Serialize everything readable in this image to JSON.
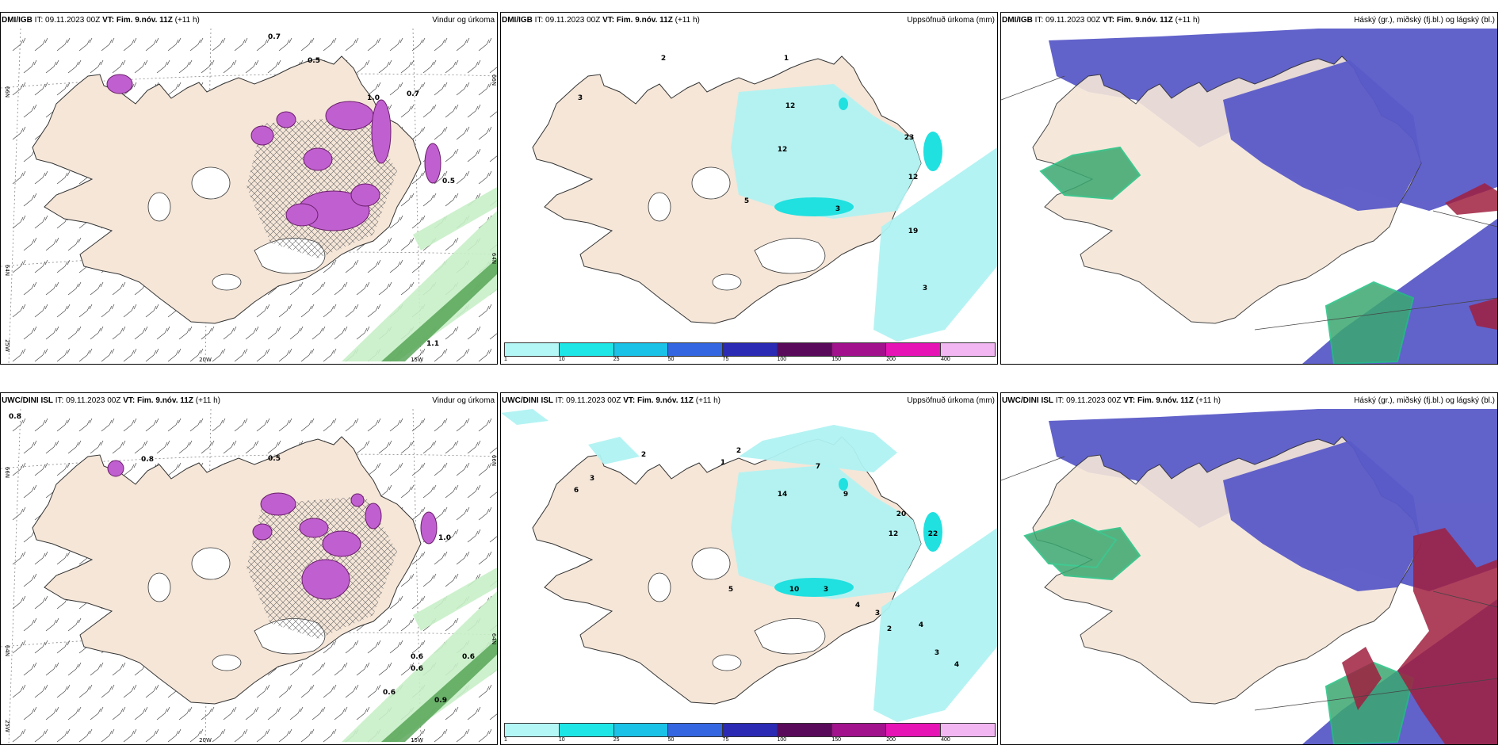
{
  "panels": [
    {
      "model": "DMI/IGB",
      "it": "09.11.2023 00Z",
      "vt": "Fim. 9.nóv. 11Z",
      "lead": "(+11 h)",
      "title": "Vindur og úrkoma",
      "type": "wind",
      "labels": [
        "0.7",
        "0.5",
        "1.0",
        "0.7",
        "0.5",
        "1.1"
      ]
    },
    {
      "model": "DMI/IGB",
      "it": "09.11.2023 00Z",
      "vt": "Fim. 9.nóv. 11Z",
      "lead": "(+11 h)",
      "title": "Uppsöfnuð úrkoma (mm)",
      "type": "precip",
      "labels": [
        "2",
        "1",
        "3",
        "12",
        "12",
        "23",
        "5",
        "12",
        "19",
        "3",
        "3"
      ]
    },
    {
      "model": "DMI/IGB",
      "it": "09.11.2023 00Z",
      "vt": "Fim. 9.nóv. 11Z",
      "lead": "(+11 h)",
      "title": "Háský (gr.), miðský (fj.bl.) og lágský (bl.)",
      "type": "cloud"
    },
    {
      "model": "UWC/DINI ISL",
      "it": "09.11.2023 00Z",
      "vt": "Fim. 9.nóv. 11Z",
      "lead": "(+11 h)",
      "title": "Vindur og úrkoma",
      "type": "wind",
      "labels": [
        "0.8",
        "0.8",
        "0.5",
        "0.6",
        "0.6",
        "0.6",
        "0.9",
        "0.6",
        "1.0"
      ]
    },
    {
      "model": "UWC/DINI ISL",
      "it": "09.11.2023 00Z",
      "vt": "Fim. 9.nóv. 11Z",
      "lead": "(+11 h)",
      "title": "Uppsöfnuð úrkoma (mm)",
      "type": "precip",
      "labels": [
        "2",
        "1",
        "2",
        "3",
        "6",
        "14",
        "7",
        "9",
        "20",
        "12",
        "22",
        "5",
        "10",
        "3",
        "4",
        "3",
        "2",
        "4",
        "3",
        "4"
      ]
    },
    {
      "model": "UWC/DINI ISL",
      "it": "09.11.2023 00Z",
      "vt": "Fim. 9.nóv. 11Z",
      "lead": "(+11 h)",
      "title": "Háský (gr.), miðský (fj.bl.) og lágský (bl.)",
      "type": "cloud"
    }
  ],
  "axes": {
    "lat_top": "66N",
    "lat_mid": "64N",
    "lon_left": "20W",
    "lon_right": "15W",
    "corner": "25W"
  },
  "legend": {
    "ticks": [
      "1",
      "10",
      "25",
      "50",
      "75",
      "100",
      "150",
      "200",
      "400"
    ],
    "colors": [
      "#b3f7f7",
      "#1ee6e6",
      "#19c2e6",
      "#3366e0",
      "#2a2ab4",
      "#5a0a5a",
      "#a1128c",
      "#e614b4",
      "#f2b6f2"
    ]
  },
  "colors": {
    "land": "#f5e6d8",
    "wind_precip": "#c8f0c8",
    "wind_precip_dark": "#50a050",
    "hatch": "#666666",
    "magenta": "#c060d0",
    "cyan": "#b0f2f2",
    "cyan_dark": "#20e0e0",
    "high_cloud": "#3ba870",
    "mid_cloud": "#5a5ac8",
    "low_cloud": "#a02040"
  }
}
